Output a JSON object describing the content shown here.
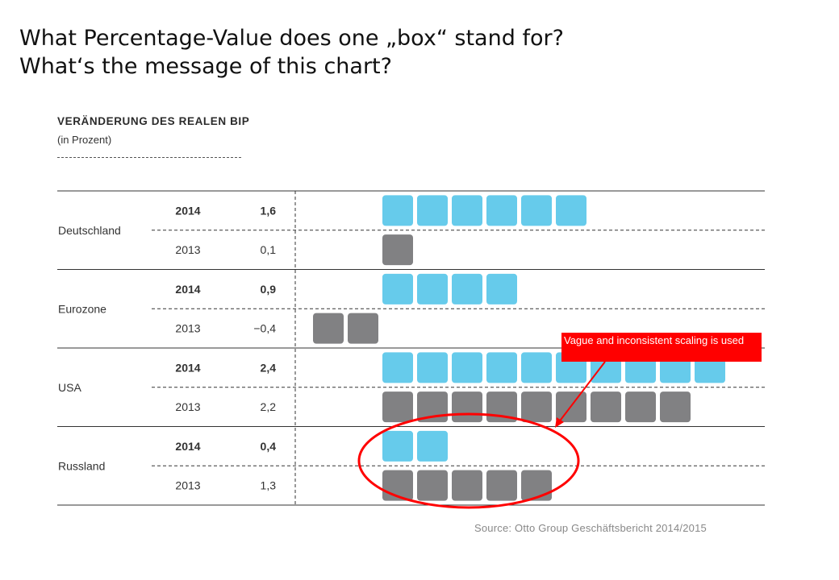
{
  "slide": {
    "question_1": "What Percentage-Value does one „box“ stand for?",
    "question_2": "What‘s the message of this chart?"
  },
  "chart_data": {
    "type": "bar",
    "title": "VERÄNDERUNG DES REALEN BIP",
    "subtitle": "(in Prozent)",
    "categories": [
      "Deutschland",
      "Eurozone",
      "USA",
      "Russland"
    ],
    "series": [
      {
        "name": "2014",
        "values": [
          1.6,
          0.9,
          2.4,
          0.4
        ],
        "value_labels": [
          "1,6",
          "0,9",
          "2,4",
          "0,4"
        ],
        "boxes": [
          6,
          4,
          10,
          2
        ]
      },
      {
        "name": "2013",
        "values": [
          0.1,
          -0.4,
          2.2,
          1.3
        ],
        "value_labels": [
          "0,1",
          "−0,4",
          "2,2",
          "1,3"
        ],
        "boxes": [
          1,
          -2,
          9,
          5
        ]
      }
    ],
    "colors": {
      "2014": "#5ec8ea",
      "2013": "#7a7a7c"
    },
    "grid": true
  },
  "annotation": {
    "callout_text": "Vague and inconsistent scaling is used",
    "callout_color": "#ff0000",
    "highlight": "Russland"
  },
  "source": "Source: Otto Group Geschäftsbericht 2014/2015"
}
